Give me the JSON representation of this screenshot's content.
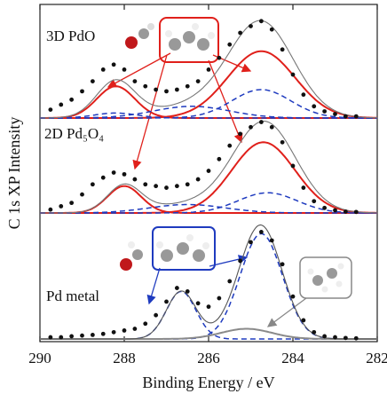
{
  "chart_data": {
    "type": "scatter",
    "xlabel": "Binding Energy / eV",
    "ylabel": "C 1s XP Intensity",
    "xlim": [
      290,
      282
    ],
    "xticks": [
      290,
      288,
      286,
      284,
      282
    ],
    "point_color": "#111111",
    "panels": [
      {
        "label": "3D PdO",
        "ylim": [
          0,
          3.4
        ],
        "total_color": "#777777",
        "x": [
          289.75,
          289.5,
          289.25,
          289.0,
          288.75,
          288.5,
          288.25,
          288.0,
          287.75,
          287.5,
          287.25,
          287.0,
          286.75,
          286.5,
          286.25,
          286.0,
          285.75,
          285.5,
          285.25,
          285.0,
          284.75,
          284.5,
          284.25,
          284.0,
          283.75,
          283.5,
          283.25,
          283.0,
          282.75,
          282.5
        ],
        "y": [
          0.25,
          0.4,
          0.55,
          0.8,
          1.1,
          1.45,
          1.6,
          1.45,
          1.1,
          0.95,
          0.85,
          0.8,
          0.85,
          0.95,
          1.1,
          1.45,
          1.8,
          2.2,
          2.55,
          2.75,
          2.9,
          2.65,
          2.05,
          1.3,
          0.7,
          0.35,
          0.2,
          0.12,
          0.05,
          0.05
        ],
        "components": [
          {
            "color": "#e0201b",
            "dash": false,
            "center": 288.2,
            "height": 0.95,
            "width": 0.45
          },
          {
            "color": "#e0201b",
            "dash": false,
            "center": 284.75,
            "height": 2.0,
            "width": 0.8
          },
          {
            "color": "#1f3bbf",
            "dash": true,
            "center": 284.75,
            "height": 0.85,
            "width": 0.7
          },
          {
            "color": "#1f3bbf",
            "dash": true,
            "center": 286.4,
            "height": 0.35,
            "width": 0.9
          },
          {
            "color": "#1f3bbf",
            "dash": true,
            "center": 288.2,
            "height": 0.15,
            "width": 0.5
          }
        ]
      },
      {
        "label": "2D Pd₅O₄",
        "ylim": [
          0,
          2.9
        ],
        "total_color": "#777777",
        "x": [
          289.75,
          289.5,
          289.25,
          289.0,
          288.75,
          288.5,
          288.25,
          288.0,
          287.75,
          287.5,
          287.25,
          287.0,
          286.75,
          286.5,
          286.25,
          286.0,
          285.75,
          285.5,
          285.25,
          285.0,
          284.75,
          284.5,
          284.25,
          284.0,
          283.75,
          283.5,
          283.25,
          283.0,
          282.75,
          282.5
        ],
        "y": [
          0.1,
          0.2,
          0.3,
          0.55,
          0.85,
          1.05,
          1.2,
          1.15,
          1.0,
          0.85,
          0.8,
          0.75,
          0.8,
          0.85,
          1.0,
          1.25,
          1.6,
          2.0,
          2.35,
          2.55,
          2.7,
          2.55,
          2.1,
          1.4,
          0.75,
          0.35,
          0.15,
          0.08,
          0.04,
          0.03
        ],
        "components": [
          {
            "color": "#e0201b",
            "dash": false,
            "center": 288.0,
            "height": 0.8,
            "width": 0.4
          },
          {
            "color": "#e0201b",
            "dash": false,
            "center": 284.7,
            "height": 2.1,
            "width": 0.75
          },
          {
            "color": "#1f3bbf",
            "dash": true,
            "center": 284.6,
            "height": 0.6,
            "width": 0.7
          },
          {
            "color": "#1f3bbf",
            "dash": true,
            "center": 286.5,
            "height": 0.25,
            "width": 0.9
          }
        ]
      },
      {
        "label": "Pd metal",
        "ylim": [
          0,
          3.5
        ],
        "total_color": "#555555",
        "x": [
          289.75,
          289.5,
          289.25,
          289.0,
          288.75,
          288.5,
          288.25,
          288.0,
          287.75,
          287.5,
          287.25,
          287.0,
          286.75,
          286.5,
          286.25,
          286.0,
          285.75,
          285.5,
          285.25,
          285.0,
          284.75,
          284.5,
          284.25,
          284.0,
          283.75,
          283.5,
          283.25,
          283.0,
          282.75,
          282.5
        ],
        "y": [
          0.05,
          0.05,
          0.08,
          0.1,
          0.12,
          0.15,
          0.2,
          0.25,
          0.3,
          0.45,
          0.7,
          1.1,
          1.5,
          1.4,
          1.05,
          0.95,
          1.2,
          1.7,
          2.3,
          2.85,
          3.15,
          2.9,
          2.2,
          1.25,
          0.55,
          0.2,
          0.08,
          0.05,
          0.03,
          0.02
        ],
        "components": [
          {
            "color": "#1f3bbf",
            "dash": true,
            "center": 284.75,
            "height": 3.1,
            "width": 0.5
          },
          {
            "color": "#1f3bbf",
            "dash": true,
            "center": 286.65,
            "height": 1.4,
            "width": 0.35
          },
          {
            "color": "#8a8a8a",
            "dash": false,
            "center": 285.1,
            "height": 0.3,
            "width": 0.6
          }
        ]
      }
    ]
  }
}
